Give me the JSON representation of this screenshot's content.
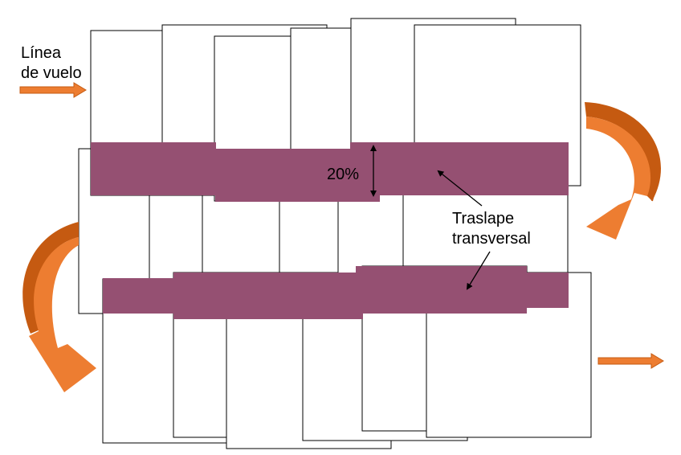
{
  "labels": {
    "flight_line_1": "Línea",
    "flight_line_2": "de vuelo",
    "percentage": "20%",
    "overlap_1": "Traslape",
    "overlap_2": "transversal"
  },
  "colors": {
    "overlap_band": "#955072",
    "arrow_fill": "#ed7d31",
    "arrow_dark": "#c55a11",
    "frame_stroke": "#000000",
    "frame_fill": "#ffffff"
  }
}
